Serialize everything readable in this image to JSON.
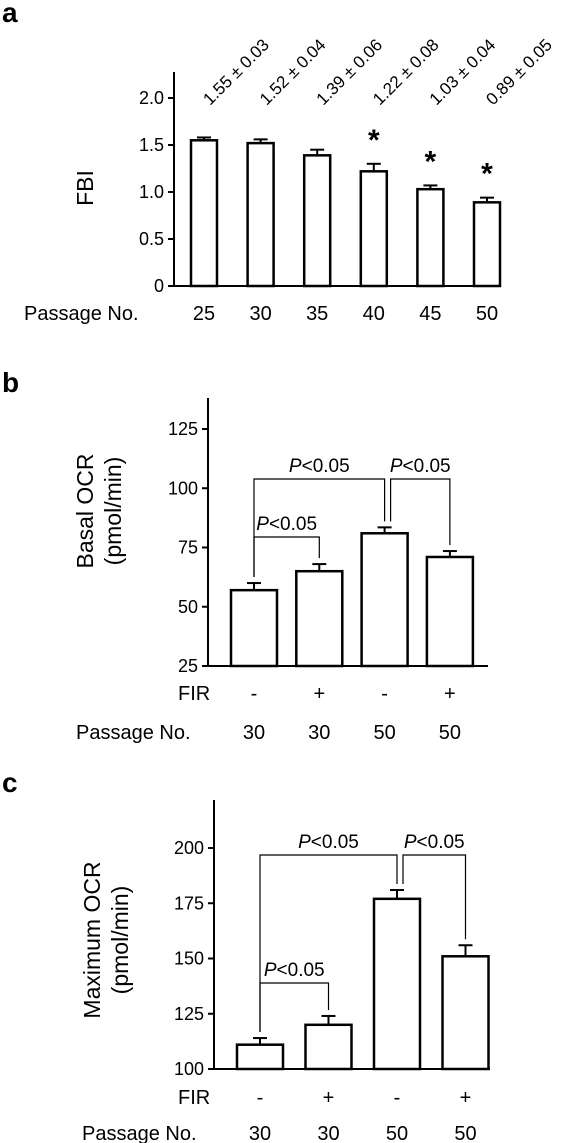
{
  "chart_data": [
    {
      "panel": "a",
      "type": "bar",
      "ylabel": "FBI",
      "ylim": [
        0,
        2.0
      ],
      "yticks": [
        "0",
        "0.5",
        "1.0",
        "1.5",
        "2.0"
      ],
      "xlabel": "Passage No.",
      "categories": [
        "25",
        "30",
        "35",
        "40",
        "45",
        "50"
      ],
      "values": [
        1.55,
        1.52,
        1.39,
        1.22,
        1.03,
        0.89
      ],
      "errors": [
        0.03,
        0.04,
        0.06,
        0.08,
        0.04,
        0.05
      ],
      "annotations": [
        "1.55 ± 0.03",
        "1.52 ± 0.04",
        "1.39 ± 0.06",
        "1.22 ± 0.08",
        "1.03 ± 0.04",
        "0.89 ± 0.05"
      ],
      "significance": [
        "",
        "",
        "",
        "*",
        "*",
        "*"
      ]
    },
    {
      "panel": "b",
      "type": "bar",
      "ylabel": "Basal OCR",
      "ylabel_unit": "(pmol/min)",
      "ylim": [
        25,
        125
      ],
      "yticks": [
        "25",
        "50",
        "75",
        "100",
        "125"
      ],
      "row_labels": [
        "FIR",
        "Passage No."
      ],
      "fir": [
        "-",
        "+",
        "-",
        "+"
      ],
      "passage": [
        "30",
        "30",
        "50",
        "50"
      ],
      "values": [
        57,
        65,
        81,
        71
      ],
      "errors": [
        3,
        3,
        2.5,
        2.5
      ],
      "comparisons": [
        {
          "from": 0,
          "to": 2,
          "label": "P<0.05"
        },
        {
          "from": 2,
          "to": 3,
          "label": "P<0.05"
        },
        {
          "from": 0,
          "to": 1,
          "label": "P<0.05"
        }
      ]
    },
    {
      "panel": "c",
      "type": "bar",
      "ylabel": "Maximum OCR",
      "ylabel_unit": "(pmol/min)",
      "ylim": [
        100,
        200
      ],
      "yticks": [
        "100",
        "125",
        "150",
        "175",
        "200"
      ],
      "row_labels": [
        "FIR",
        "Passage No."
      ],
      "fir": [
        "-",
        "+",
        "-",
        "+"
      ],
      "passage": [
        "30",
        "30",
        "50",
        "50"
      ],
      "values": [
        111,
        120,
        177,
        151
      ],
      "errors": [
        3,
        4,
        4,
        5
      ],
      "comparisons": [
        {
          "from": 0,
          "to": 2,
          "label": "P<0.05"
        },
        {
          "from": 2,
          "to": 3,
          "label": "P<0.05"
        },
        {
          "from": 0,
          "to": 1,
          "label": "P<0.05"
        }
      ]
    }
  ]
}
